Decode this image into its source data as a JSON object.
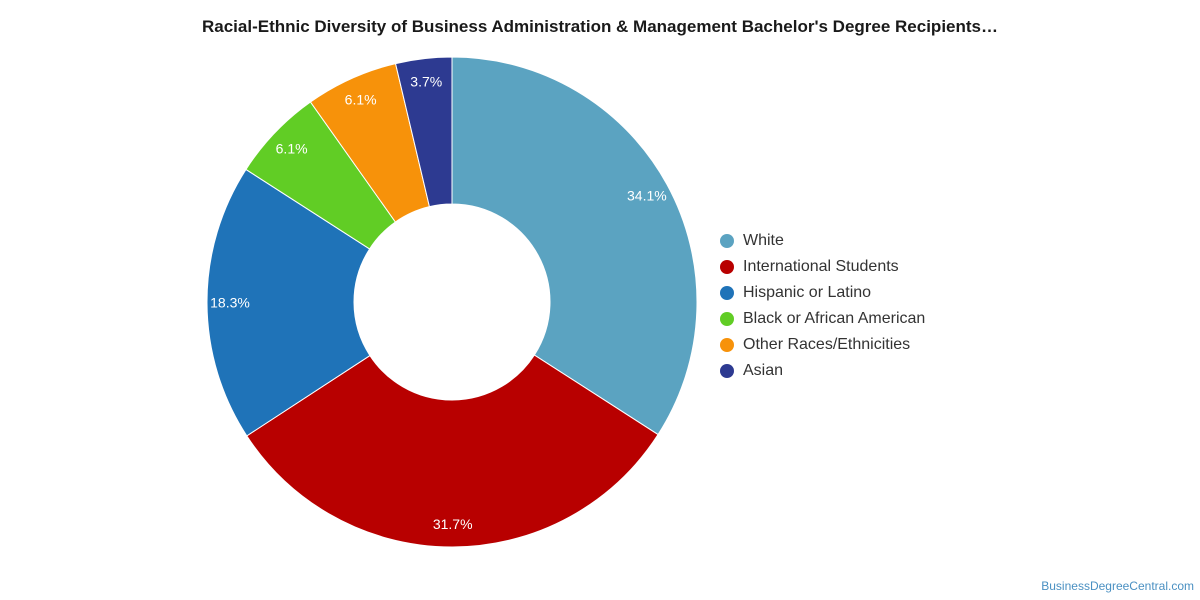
{
  "chart_data": {
    "type": "pie",
    "title": "Racial-Ethnic Diversity of Business Administration & Management Bachelor's Degree Recipients…",
    "legend_position": "right",
    "slices": [
      {
        "name": "White",
        "value": 34.1,
        "label": "34.1%",
        "color": "#5ba3c1"
      },
      {
        "name": "International Students",
        "value": 31.7,
        "label": "31.7%",
        "color": "#b80000"
      },
      {
        "name": "Hispanic or Latino",
        "value": 18.3,
        "label": "18.3%",
        "color": "#1f73b8"
      },
      {
        "name": "Black or African American",
        "value": 6.1,
        "label": "6.1%",
        "color": "#61cd25"
      },
      {
        "name": "Other Races/Ethnicities",
        "value": 6.1,
        "label": "6.1%",
        "color": "#f7920a"
      },
      {
        "name": "Asian",
        "value": 3.7,
        "label": "3.7%",
        "color": "#2d3a91"
      }
    ]
  },
  "watermark": "BusinessDegreeCentral.com"
}
